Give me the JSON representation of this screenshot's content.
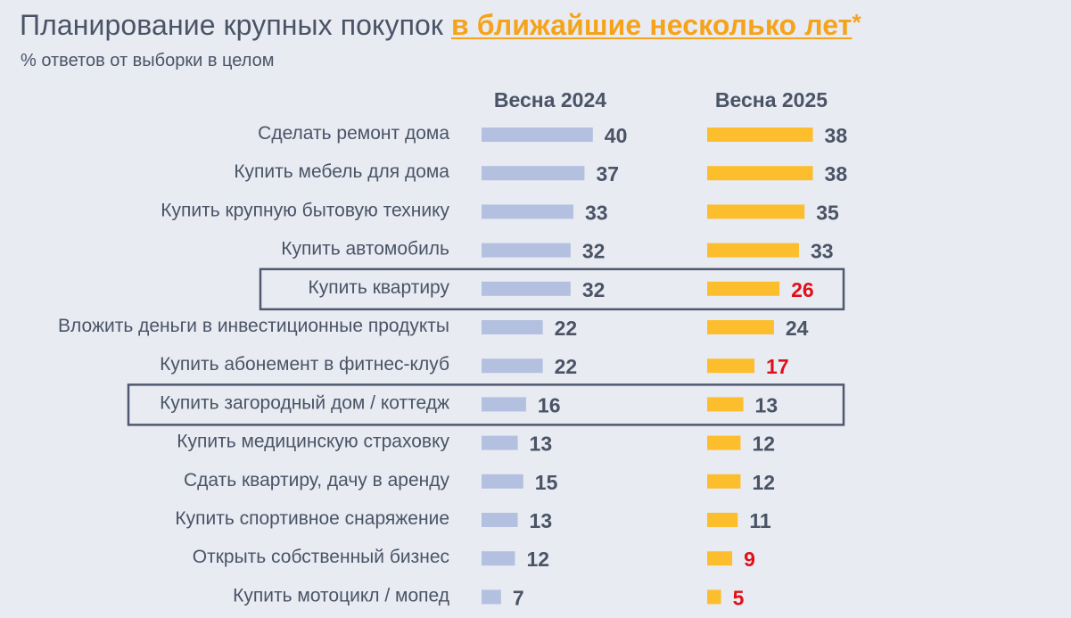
{
  "title": {
    "main": "Планирование крупных покупок ",
    "highlight": "в ближайшие несколько лет",
    "star": "*"
  },
  "subtitle": "% ответов от выборки в целом",
  "colors": {
    "series_2024": "#b4c0e0",
    "series_2025": "#fdbe2e",
    "label_default": "#4a5466",
    "label_decline": "#e0101a",
    "highlight_box": "#4f5870"
  },
  "chart_data": {
    "type": "bar",
    "orientation": "horizontal",
    "categories": [
      "Сделать ремонт дома",
      "Купить мебель для дома",
      "Купить крупную бытовую технику",
      "Купить автомобиль",
      "Купить квартиру",
      "Вложить деньги в инвестиционные продукты",
      "Купить абонемент в фитнес-клуб",
      "Купить загородный дом / коттедж",
      "Купить медицинскую страховку",
      "Сдать квартиру, дачу в аренду",
      "Купить спортивное снаряжение",
      "Открыть собственный бизнес",
      "Купить мотоцикл / мопед"
    ],
    "series": [
      {
        "name": "Весна 2024",
        "values": [
          40,
          37,
          33,
          32,
          32,
          22,
          22,
          16,
          13,
          15,
          13,
          12,
          7
        ]
      },
      {
        "name": "Весна 2025",
        "values": [
          38,
          38,
          35,
          33,
          26,
          24,
          17,
          13,
          12,
          12,
          11,
          9,
          5
        ]
      }
    ],
    "declines_2025": [
      false,
      false,
      false,
      false,
      true,
      false,
      true,
      false,
      false,
      false,
      false,
      true,
      true
    ],
    "highlighted_categories": [
      "Купить квартиру",
      "Купить загородный дом / коттедж"
    ]
  }
}
